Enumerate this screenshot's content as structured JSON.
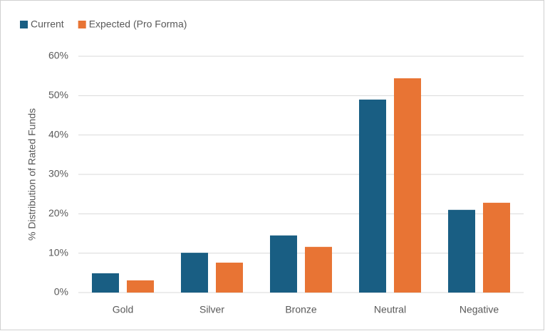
{
  "chart_data": {
    "type": "bar",
    "y_label": "% Distribution of Rated Funds",
    "categories": [
      "Gold",
      "Silver",
      "Bronze",
      "Neutral",
      "Negative"
    ],
    "series": [
      {
        "name": "Current",
        "color": "#195e83",
        "values": [
          4.9,
          10.1,
          14.5,
          49.0,
          21.0
        ]
      },
      {
        "name": "Expected (Pro Forma)",
        "color": "#e87434",
        "values": [
          3.1,
          7.6,
          11.6,
          54.4,
          22.8
        ]
      }
    ],
    "ylim": [
      0,
      60
    ],
    "yticks": [
      {
        "value": 0,
        "label": "0%"
      },
      {
        "value": 10,
        "label": "10%"
      },
      {
        "value": 20,
        "label": "20%"
      },
      {
        "value": 30,
        "label": "30%"
      },
      {
        "value": 40,
        "label": "40%"
      },
      {
        "value": 50,
        "label": "50%"
      },
      {
        "value": 60,
        "label": "60%"
      }
    ],
    "grid": true,
    "legend": "top-left"
  }
}
